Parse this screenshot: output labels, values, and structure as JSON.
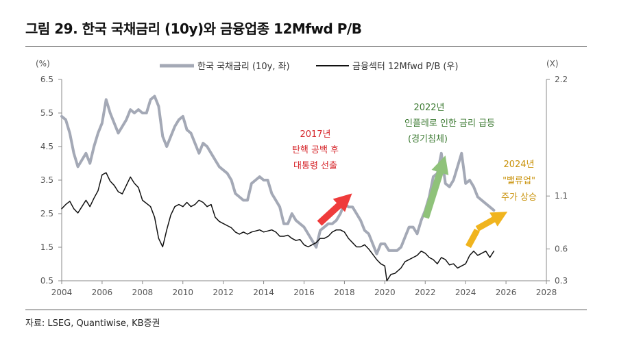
{
  "title": "그림 29. 한국 국채금리 (10y)와 금융업종 12Mfwd P/B",
  "source": "자료: LSEG, Quantiwise, KB증권",
  "chart_data": {
    "type": "line",
    "left_unit": "(%)",
    "right_unit": "(X)",
    "xlim": [
      2004,
      2028
    ],
    "x_ticks": [
      "2004",
      "2006",
      "2008",
      "2010",
      "2012",
      "2014",
      "2016",
      "2018",
      "2020",
      "2022",
      "2024",
      "2026",
      "2028"
    ],
    "y_left": {
      "lim": [
        0.5,
        6.5
      ],
      "ticks": [
        "6.5",
        "5.5",
        "4.5",
        "3.5",
        "2.5",
        "1.5",
        "0.5"
      ]
    },
    "y_right": {
      "lim": [
        0.3,
        2.2
      ],
      "ticks": [
        "2.2",
        "1.1",
        "0.6",
        "0.3"
      ]
    },
    "colors": {
      "rate": "#a4a9b6",
      "pb": "#111111",
      "red": "#ef3b3b",
      "green": "#78b25f",
      "gold": "#f0b41e",
      "red_text": "#d6262b",
      "green_text": "#3c7a32",
      "gold_text": "#c9920a"
    },
    "series": [
      {
        "name": "한국 국채금리 (10y, 좌)",
        "axis": "left",
        "points": [
          [
            2004.0,
            5.4
          ],
          [
            2004.2,
            5.3
          ],
          [
            2004.4,
            4.9
          ],
          [
            2004.6,
            4.3
          ],
          [
            2004.8,
            3.9
          ],
          [
            2005.0,
            4.1
          ],
          [
            2005.2,
            4.3
          ],
          [
            2005.4,
            4.0
          ],
          [
            2005.6,
            4.5
          ],
          [
            2005.8,
            4.9
          ],
          [
            2006.0,
            5.2
          ],
          [
            2006.2,
            5.9
          ],
          [
            2006.4,
            5.5
          ],
          [
            2006.6,
            5.2
          ],
          [
            2006.8,
            4.9
          ],
          [
            2007.0,
            5.1
          ],
          [
            2007.2,
            5.3
          ],
          [
            2007.4,
            5.6
          ],
          [
            2007.6,
            5.5
          ],
          [
            2007.8,
            5.6
          ],
          [
            2008.0,
            5.5
          ],
          [
            2008.2,
            5.5
          ],
          [
            2008.4,
            5.9
          ],
          [
            2008.6,
            6.0
          ],
          [
            2008.8,
            5.7
          ],
          [
            2009.0,
            4.8
          ],
          [
            2009.2,
            4.5
          ],
          [
            2009.4,
            4.8
          ],
          [
            2009.6,
            5.1
          ],
          [
            2009.8,
            5.3
          ],
          [
            2010.0,
            5.4
          ],
          [
            2010.2,
            5.0
          ],
          [
            2010.4,
            4.9
          ],
          [
            2010.6,
            4.6
          ],
          [
            2010.8,
            4.3
          ],
          [
            2011.0,
            4.6
          ],
          [
            2011.2,
            4.5
          ],
          [
            2011.4,
            4.3
          ],
          [
            2011.6,
            4.1
          ],
          [
            2011.8,
            3.9
          ],
          [
            2012.0,
            3.8
          ],
          [
            2012.2,
            3.7
          ],
          [
            2012.4,
            3.5
          ],
          [
            2012.6,
            3.1
          ],
          [
            2012.8,
            3.0
          ],
          [
            2013.0,
            2.9
          ],
          [
            2013.2,
            2.9
          ],
          [
            2013.4,
            3.4
          ],
          [
            2013.6,
            3.5
          ],
          [
            2013.8,
            3.6
          ],
          [
            2014.0,
            3.5
          ],
          [
            2014.2,
            3.5
          ],
          [
            2014.4,
            3.1
          ],
          [
            2014.6,
            2.9
          ],
          [
            2014.8,
            2.7
          ],
          [
            2015.0,
            2.2
          ],
          [
            2015.2,
            2.2
          ],
          [
            2015.4,
            2.5
          ],
          [
            2015.6,
            2.3
          ],
          [
            2015.8,
            2.2
          ],
          [
            2016.0,
            2.1
          ],
          [
            2016.2,
            1.9
          ],
          [
            2016.4,
            1.7
          ],
          [
            2016.6,
            1.5
          ],
          [
            2016.8,
            2.0
          ],
          [
            2017.0,
            2.1
          ],
          [
            2017.2,
            2.2
          ],
          [
            2017.4,
            2.2
          ],
          [
            2017.6,
            2.3
          ],
          [
            2017.8,
            2.5
          ],
          [
            2018.0,
            2.8
          ],
          [
            2018.2,
            2.7
          ],
          [
            2018.4,
            2.7
          ],
          [
            2018.6,
            2.5
          ],
          [
            2018.8,
            2.3
          ],
          [
            2019.0,
            2.0
          ],
          [
            2019.2,
            1.9
          ],
          [
            2019.4,
            1.6
          ],
          [
            2019.6,
            1.3
          ],
          [
            2019.8,
            1.6
          ],
          [
            2020.0,
            1.6
          ],
          [
            2020.2,
            1.4
          ],
          [
            2020.4,
            1.4
          ],
          [
            2020.6,
            1.4
          ],
          [
            2020.8,
            1.5
          ],
          [
            2021.0,
            1.8
          ],
          [
            2021.2,
            2.1
          ],
          [
            2021.4,
            2.1
          ],
          [
            2021.6,
            1.9
          ],
          [
            2021.8,
            2.3
          ],
          [
            2022.0,
            2.6
          ],
          [
            2022.2,
            3.0
          ],
          [
            2022.4,
            3.6
          ],
          [
            2022.6,
            3.7
          ],
          [
            2022.8,
            4.3
          ],
          [
            2023.0,
            3.4
          ],
          [
            2023.2,
            3.3
          ],
          [
            2023.4,
            3.5
          ],
          [
            2023.6,
            3.9
          ],
          [
            2023.8,
            4.3
          ],
          [
            2024.0,
            3.4
          ],
          [
            2024.2,
            3.5
          ],
          [
            2024.4,
            3.3
          ],
          [
            2024.6,
            3.0
          ],
          [
            2024.8,
            2.9
          ],
          [
            2025.0,
            2.8
          ],
          [
            2025.2,
            2.7
          ],
          [
            2025.4,
            2.6
          ]
        ]
      },
      {
        "name": "금융섹터 12Mfwd P/B (우)",
        "axis": "right",
        "points": [
          [
            2004.0,
            0.98
          ],
          [
            2004.2,
            1.02
          ],
          [
            2004.4,
            1.05
          ],
          [
            2004.6,
            0.98
          ],
          [
            2004.8,
            0.94
          ],
          [
            2005.0,
            1.0
          ],
          [
            2005.2,
            1.06
          ],
          [
            2005.4,
            1.0
          ],
          [
            2005.6,
            1.08
          ],
          [
            2005.8,
            1.15
          ],
          [
            2006.0,
            1.3
          ],
          [
            2006.2,
            1.32
          ],
          [
            2006.4,
            1.24
          ],
          [
            2006.6,
            1.2
          ],
          [
            2006.8,
            1.14
          ],
          [
            2007.0,
            1.12
          ],
          [
            2007.2,
            1.2
          ],
          [
            2007.4,
            1.28
          ],
          [
            2007.6,
            1.22
          ],
          [
            2007.8,
            1.18
          ],
          [
            2008.0,
            1.06
          ],
          [
            2008.2,
            1.03
          ],
          [
            2008.4,
            1.0
          ],
          [
            2008.6,
            0.9
          ],
          [
            2008.8,
            0.7
          ],
          [
            2009.0,
            0.62
          ],
          [
            2009.2,
            0.78
          ],
          [
            2009.4,
            0.92
          ],
          [
            2009.6,
            1.0
          ],
          [
            2009.8,
            1.02
          ],
          [
            2010.0,
            1.0
          ],
          [
            2010.2,
            1.04
          ],
          [
            2010.4,
            1.0
          ],
          [
            2010.6,
            1.02
          ],
          [
            2010.8,
            1.06
          ],
          [
            2011.0,
            1.04
          ],
          [
            2011.2,
            1.0
          ],
          [
            2011.4,
            1.02
          ],
          [
            2011.6,
            0.9
          ],
          [
            2011.8,
            0.86
          ],
          [
            2012.0,
            0.84
          ],
          [
            2012.2,
            0.82
          ],
          [
            2012.4,
            0.8
          ],
          [
            2012.6,
            0.76
          ],
          [
            2012.8,
            0.74
          ],
          [
            2013.0,
            0.76
          ],
          [
            2013.2,
            0.74
          ],
          [
            2013.4,
            0.76
          ],
          [
            2013.6,
            0.77
          ],
          [
            2013.8,
            0.78
          ],
          [
            2014.0,
            0.76
          ],
          [
            2014.2,
            0.77
          ],
          [
            2014.4,
            0.78
          ],
          [
            2014.6,
            0.76
          ],
          [
            2014.8,
            0.72
          ],
          [
            2015.0,
            0.72
          ],
          [
            2015.2,
            0.73
          ],
          [
            2015.4,
            0.7
          ],
          [
            2015.6,
            0.68
          ],
          [
            2015.8,
            0.69
          ],
          [
            2016.0,
            0.64
          ],
          [
            2016.2,
            0.62
          ],
          [
            2016.4,
            0.64
          ],
          [
            2016.6,
            0.66
          ],
          [
            2016.8,
            0.7
          ],
          [
            2017.0,
            0.7
          ],
          [
            2017.2,
            0.72
          ],
          [
            2017.4,
            0.76
          ],
          [
            2017.6,
            0.78
          ],
          [
            2017.8,
            0.78
          ],
          [
            2018.0,
            0.76
          ],
          [
            2018.2,
            0.7
          ],
          [
            2018.4,
            0.66
          ],
          [
            2018.6,
            0.62
          ],
          [
            2018.8,
            0.62
          ],
          [
            2019.0,
            0.64
          ],
          [
            2019.2,
            0.6
          ],
          [
            2019.4,
            0.55
          ],
          [
            2019.6,
            0.5
          ],
          [
            2019.8,
            0.46
          ],
          [
            2020.0,
            0.44
          ],
          [
            2020.1,
            0.3
          ],
          [
            2020.3,
            0.36
          ],
          [
            2020.5,
            0.37
          ],
          [
            2020.8,
            0.42
          ],
          [
            2021.0,
            0.48
          ],
          [
            2021.2,
            0.5
          ],
          [
            2021.4,
            0.52
          ],
          [
            2021.6,
            0.54
          ],
          [
            2021.8,
            0.58
          ],
          [
            2022.0,
            0.56
          ],
          [
            2022.2,
            0.52
          ],
          [
            2022.4,
            0.5
          ],
          [
            2022.6,
            0.46
          ],
          [
            2022.8,
            0.52
          ],
          [
            2023.0,
            0.5
          ],
          [
            2023.2,
            0.45
          ],
          [
            2023.4,
            0.46
          ],
          [
            2023.6,
            0.42
          ],
          [
            2023.8,
            0.44
          ],
          [
            2024.0,
            0.46
          ],
          [
            2024.2,
            0.54
          ],
          [
            2024.4,
            0.58
          ],
          [
            2024.6,
            0.54
          ],
          [
            2024.8,
            0.56
          ],
          [
            2025.0,
            0.58
          ],
          [
            2025.2,
            0.52
          ],
          [
            2025.4,
            0.58
          ]
        ]
      }
    ],
    "annotations": {
      "a2017": [
        "2017년",
        "탄핵 공백 후",
        "대통령 선출"
      ],
      "a2022": [
        "2022년",
        "인플레로 인한 금리 급등",
        "(경기침체)"
      ],
      "a2024": [
        "2024년",
        "\"밸류업\"",
        "주가 상승"
      ]
    }
  }
}
